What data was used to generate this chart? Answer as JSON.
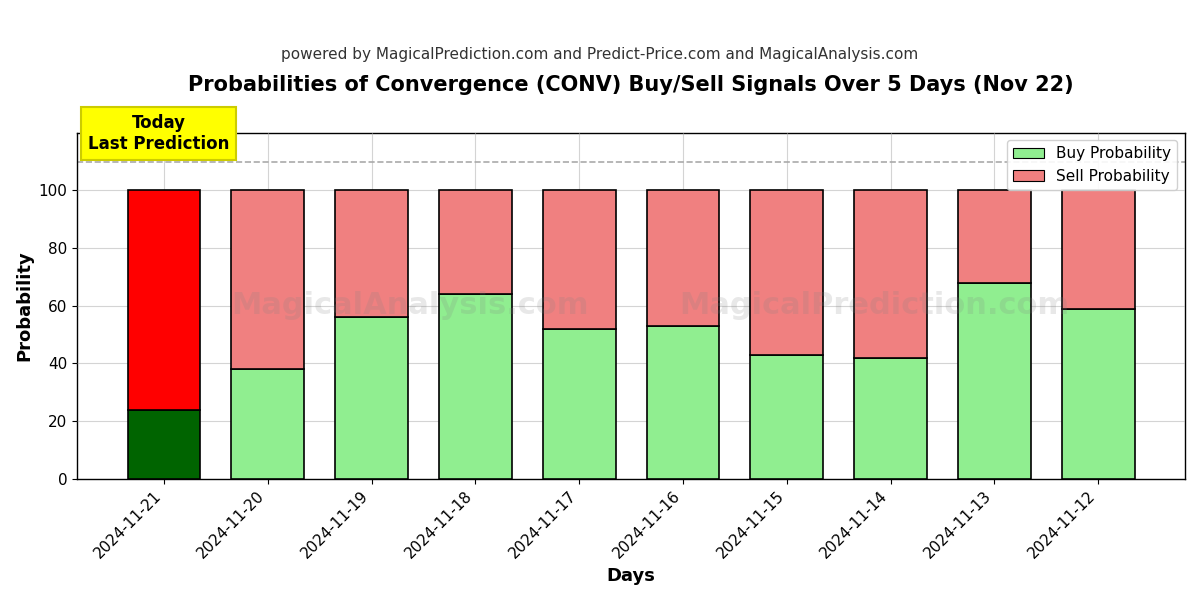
{
  "title": "Probabilities of Convergence (CONV) Buy/Sell Signals Over 5 Days (Nov 22)",
  "subtitle": "powered by MagicalPrediction.com and Predict-Price.com and MagicalAnalysis.com",
  "xlabel": "Days",
  "ylabel": "Probability",
  "watermark_lines": [
    "MagicalAnalysis.com",
    "MagicalPrediction.com"
  ],
  "dates": [
    "2024-11-21",
    "2024-11-20",
    "2024-11-19",
    "2024-11-18",
    "2024-11-17",
    "2024-11-16",
    "2024-11-15",
    "2024-11-14",
    "2024-11-13",
    "2024-11-12"
  ],
  "buy_values": [
    24,
    38,
    56,
    64,
    52,
    53,
    43,
    42,
    68,
    59
  ],
  "sell_values": [
    76,
    62,
    44,
    36,
    48,
    47,
    57,
    58,
    32,
    41
  ],
  "today_buy_color": "#006400",
  "today_sell_color": "#FF0000",
  "regular_buy_color": "#90EE90",
  "regular_sell_color": "#F08080",
  "legend_buy_color": "#90EE90",
  "legend_sell_color": "#F08080",
  "annotation_text": "Today\nLast Prediction",
  "annotation_facecolor": "yellow",
  "annotation_edgecolor": "#cccc00",
  "dashed_line_y": 110,
  "ylim": [
    0,
    120
  ],
  "yticks": [
    0,
    20,
    40,
    60,
    80,
    100
  ],
  "bar_edgecolor": "black",
  "bar_linewidth": 1.2,
  "grid_color": "#aaaaaa",
  "grid_linestyle": "-",
  "grid_alpha": 0.5,
  "background_color": "white",
  "title_fontsize": 15,
  "subtitle_fontsize": 11,
  "axis_label_fontsize": 13,
  "tick_label_fontsize": 11,
  "legend_fontsize": 11,
  "annotation_fontsize": 12
}
